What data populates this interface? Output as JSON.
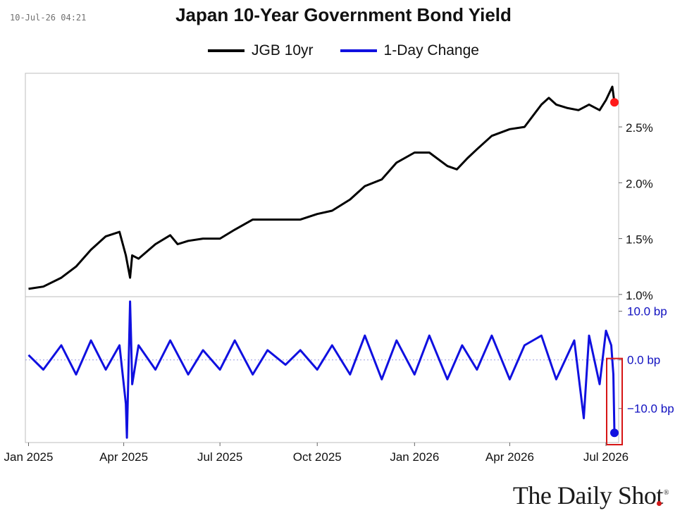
{
  "header": {
    "timestamp": "10-Jul-26 04:21",
    "brand": "The Daily Shot"
  },
  "chart_data": [
    {
      "type": "line",
      "title": "Japan 10-Year Government Bond Yield",
      "legend_position": "top",
      "grid": false,
      "y_axis_side": "right",
      "ylim": [
        0.98,
        2.98
      ],
      "y_ticks": [
        1.0,
        1.5,
        2.0,
        2.5
      ],
      "y_tick_labels": [
        "1.0%",
        "1.5%",
        "2.0%",
        "2.5%"
      ],
      "series": [
        {
          "name": "JGB 10yr",
          "color": "#000000",
          "x": [
            "2025-01-01",
            "2025-01-15",
            "2025-02-01",
            "2025-02-15",
            "2025-03-01",
            "2025-03-15",
            "2025-03-28",
            "2025-04-03",
            "2025-04-07",
            "2025-04-09",
            "2025-04-15",
            "2025-05-01",
            "2025-05-15",
            "2025-05-22",
            "2025-06-01",
            "2025-06-15",
            "2025-07-01",
            "2025-07-15",
            "2025-08-01",
            "2025-08-15",
            "2025-09-01",
            "2025-09-15",
            "2025-10-01",
            "2025-10-15",
            "2025-11-01",
            "2025-11-15",
            "2025-12-01",
            "2025-12-15",
            "2026-01-01",
            "2026-01-15",
            "2026-02-01",
            "2026-02-10",
            "2026-02-20",
            "2026-03-01",
            "2026-03-15",
            "2026-04-01",
            "2026-04-15",
            "2026-05-01",
            "2026-05-08",
            "2026-05-15",
            "2026-05-25",
            "2026-06-05",
            "2026-06-15",
            "2026-06-25",
            "2026-07-01",
            "2026-07-07",
            "2026-07-09"
          ],
          "values": [
            1.05,
            1.07,
            1.15,
            1.25,
            1.4,
            1.52,
            1.56,
            1.35,
            1.15,
            1.35,
            1.32,
            1.45,
            1.53,
            1.45,
            1.48,
            1.5,
            1.5,
            1.58,
            1.67,
            1.67,
            1.67,
            1.67,
            1.72,
            1.75,
            1.85,
            1.97,
            2.03,
            2.18,
            2.27,
            2.27,
            2.15,
            2.12,
            2.22,
            2.3,
            2.42,
            2.48,
            2.5,
            2.7,
            2.76,
            2.7,
            2.67,
            2.65,
            2.7,
            2.65,
            2.74,
            2.86,
            2.72
          ]
        }
      ],
      "highlight_point": {
        "x": "2026-07-09",
        "value": 2.72,
        "color": "#ff1a1a"
      }
    },
    {
      "type": "line",
      "legend_position": "top",
      "grid": false,
      "y_axis_side": "right",
      "ylim": [
        -17,
        13
      ],
      "y_ticks": [
        10,
        0,
        -10
      ],
      "y_tick_labels": [
        "10.0 bp",
        "0.0 bp",
        "−10.0 bp"
      ],
      "zero_line": true,
      "series": [
        {
          "name": "1-Day Change",
          "color": "#1010e0",
          "x": [
            "2025-01-01",
            "2025-01-15",
            "2025-02-01",
            "2025-02-15",
            "2025-03-01",
            "2025-03-15",
            "2025-03-28",
            "2025-04-03",
            "2025-04-04",
            "2025-04-07",
            "2025-04-08",
            "2025-04-09",
            "2025-04-15",
            "2025-05-01",
            "2025-05-15",
            "2025-06-01",
            "2025-06-15",
            "2025-07-01",
            "2025-07-15",
            "2025-08-01",
            "2025-08-15",
            "2025-09-01",
            "2025-09-15",
            "2025-10-01",
            "2025-10-15",
            "2025-11-01",
            "2025-11-15",
            "2025-12-01",
            "2025-12-15",
            "2026-01-01",
            "2026-01-15",
            "2026-02-01",
            "2026-02-15",
            "2026-03-01",
            "2026-03-15",
            "2026-04-01",
            "2026-04-15",
            "2026-05-01",
            "2026-05-15",
            "2026-06-01",
            "2026-06-10",
            "2026-06-15",
            "2026-06-25",
            "2026-07-01",
            "2026-07-06",
            "2026-07-08",
            "2026-07-09"
          ],
          "values": [
            1,
            -2,
            3,
            -3,
            4,
            -2,
            3,
            -9,
            -16,
            12,
            4,
            -5,
            3,
            -2,
            4,
            -3,
            2,
            -2,
            4,
            -3,
            2,
            -1,
            2,
            -2,
            3,
            -3,
            5,
            -4,
            4,
            -3,
            5,
            -4,
            3,
            -2,
            5,
            -4,
            3,
            5,
            -4,
            4,
            -12,
            5,
            -5,
            6,
            3,
            -3,
            -15
          ]
        }
      ],
      "highlight_point": {
        "x": "2026-07-09",
        "value": -15,
        "color": "#1010e0",
        "box_color": "#d61515"
      }
    }
  ],
  "x_axis": {
    "tick_dates": [
      "2025-01-01",
      "2025-04-01",
      "2025-07-01",
      "2025-10-01",
      "2026-01-01",
      "2026-04-01",
      "2026-07-01"
    ],
    "tick_labels": [
      "Jan 2025",
      "Apr 2025",
      "Jul 2025",
      "Oct 2025",
      "Jan 2026",
      "Apr 2026",
      "Jul 2026"
    ],
    "range": [
      "2024-12-29",
      "2026-07-13"
    ]
  }
}
